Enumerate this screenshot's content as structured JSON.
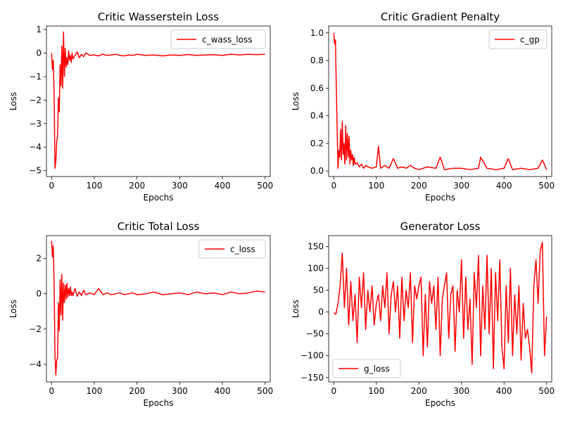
{
  "chart_data": [
    {
      "type": "line",
      "title": "Critic Wasserstein Loss",
      "xlabel": "Epochs",
      "ylabel": "Loss",
      "xlim": [
        -12,
        512
      ],
      "ylim": [
        -5.25,
        1.15
      ],
      "xticks": [
        0,
        100,
        200,
        300,
        400,
        500
      ],
      "yticks": [
        -5,
        -4,
        -3,
        -2,
        -1,
        0,
        1
      ],
      "legend_position": "upper-right",
      "grid": false,
      "series": [
        {
          "name": "c_wass_loss",
          "color": "#ff0000",
          "x": [
            0,
            2,
            4,
            6,
            8,
            10,
            12,
            14,
            16,
            18,
            20,
            22,
            24,
            26,
            28,
            30,
            32,
            34,
            36,
            38,
            40,
            42,
            44,
            46,
            48,
            50,
            55,
            60,
            65,
            70,
            75,
            80,
            90,
            100,
            110,
            120,
            130,
            140,
            150,
            160,
            170,
            180,
            190,
            200,
            220,
            240,
            260,
            280,
            300,
            320,
            340,
            360,
            380,
            400,
            420,
            440,
            460,
            480,
            500
          ],
          "y": [
            0.0,
            -0.7,
            -0.3,
            -1.8,
            -4.9,
            -4.6,
            -3.8,
            -3.5,
            -1.9,
            -2.5,
            -0.5,
            -1.4,
            0.3,
            -1.5,
            0.9,
            -1.0,
            0.2,
            -0.6,
            -0.2,
            -0.5,
            0.1,
            -0.3,
            -0.1,
            -0.4,
            0.0,
            -0.25,
            -0.1,
            0.05,
            -0.2,
            -0.05,
            -0.15,
            0.0,
            -0.1,
            -0.08,
            -0.12,
            -0.05,
            -0.1,
            -0.08,
            -0.05,
            -0.1,
            -0.12,
            -0.08,
            -0.1,
            -0.05,
            -0.1,
            -0.08,
            -0.12,
            -0.08,
            -0.1,
            -0.06,
            -0.1,
            -0.08,
            -0.07,
            -0.1,
            -0.05,
            -0.08,
            -0.05,
            -0.07,
            -0.05
          ]
        }
      ]
    },
    {
      "type": "line",
      "title": "Critic Gradient Penalty",
      "xlabel": "Epochs",
      "ylabel": "Loss",
      "xlim": [
        -12,
        512
      ],
      "ylim": [
        -0.04,
        1.05
      ],
      "xticks": [
        0,
        100,
        200,
        300,
        400,
        500
      ],
      "yticks": [
        0.0,
        0.2,
        0.4,
        0.6,
        0.8,
        1.0
      ],
      "legend_position": "upper-right",
      "grid": false,
      "series": [
        {
          "name": "c_gp",
          "color": "#ff0000",
          "x": [
            0,
            2,
            4,
            6,
            8,
            10,
            12,
            14,
            16,
            18,
            20,
            22,
            24,
            26,
            28,
            30,
            32,
            34,
            36,
            38,
            40,
            42,
            44,
            46,
            48,
            50,
            55,
            60,
            65,
            70,
            75,
            80,
            90,
            100,
            105,
            110,
            120,
            130,
            140,
            150,
            160,
            170,
            180,
            190,
            200,
            220,
            240,
            250,
            260,
            280,
            300,
            320,
            340,
            345,
            360,
            380,
            400,
            410,
            420,
            440,
            460,
            480,
            490,
            500
          ],
          "y": [
            1.0,
            0.92,
            0.95,
            0.6,
            0.3,
            0.02,
            0.15,
            0.1,
            0.3,
            0.08,
            0.36,
            0.12,
            0.2,
            0.05,
            0.33,
            0.08,
            0.27,
            0.1,
            0.25,
            0.05,
            0.15,
            0.08,
            0.12,
            0.04,
            0.1,
            0.05,
            0.06,
            0.03,
            0.05,
            0.02,
            0.04,
            0.03,
            0.02,
            0.03,
            0.18,
            0.02,
            0.04,
            0.02,
            0.09,
            0.02,
            0.03,
            0.02,
            0.04,
            0.02,
            0.01,
            0.03,
            0.02,
            0.1,
            0.01,
            0.02,
            0.02,
            0.01,
            0.02,
            0.1,
            0.02,
            0.01,
            0.02,
            0.09,
            0.01,
            0.02,
            0.01,
            0.02,
            0.08,
            0.01
          ]
        }
      ]
    },
    {
      "type": "line",
      "title": "Critic Total Loss",
      "xlabel": "Epochs",
      "ylabel": "Loss",
      "xlim": [
        -12,
        512
      ],
      "ylim": [
        -5.0,
        3.3
      ],
      "xticks": [
        0,
        100,
        200,
        300,
        400,
        500
      ],
      "yticks": [
        -4,
        -2,
        0,
        2
      ],
      "legend_position": "upper-right",
      "grid": false,
      "series": [
        {
          "name": "c_loss",
          "color": "#ff0000",
          "x": [
            0,
            2,
            4,
            6,
            8,
            10,
            12,
            14,
            16,
            18,
            20,
            22,
            24,
            26,
            28,
            30,
            32,
            34,
            36,
            38,
            40,
            42,
            44,
            46,
            48,
            50,
            55,
            60,
            65,
            70,
            75,
            80,
            90,
            100,
            110,
            120,
            130,
            140,
            150,
            160,
            170,
            180,
            190,
            200,
            220,
            240,
            260,
            280,
            300,
            320,
            340,
            360,
            380,
            400,
            420,
            440,
            460,
            480,
            500
          ],
          "y": [
            3.0,
            2.1,
            2.7,
            0.5,
            -3.5,
            -4.6,
            -3.8,
            -3.6,
            -0.5,
            -2.1,
            0.8,
            -1.2,
            1.1,
            -1.5,
            0.6,
            -0.5,
            0.5,
            -0.3,
            0.6,
            -0.2,
            0.3,
            -0.1,
            0.4,
            -0.1,
            0.1,
            -0.1,
            0.3,
            -0.15,
            0.1,
            -0.1,
            0.2,
            -0.05,
            0.05,
            -0.05,
            0.3,
            -0.05,
            0.05,
            -0.05,
            0.0,
            0.05,
            -0.05,
            0.0,
            0.05,
            -0.05,
            0.0,
            0.1,
            -0.05,
            0.0,
            0.05,
            -0.05,
            0.1,
            0.0,
            0.05,
            -0.05,
            0.1,
            0.0,
            0.05,
            0.15,
            0.1
          ]
        }
      ]
    },
    {
      "type": "line",
      "title": "Generator Loss",
      "xlabel": "Epochs",
      "ylabel": "Loss",
      "xlim": [
        -12,
        512
      ],
      "ylim": [
        -160,
        175
      ],
      "xticks": [
        0,
        100,
        200,
        300,
        400,
        500
      ],
      "yticks": [
        -150,
        -100,
        -50,
        0,
        50,
        100,
        150
      ],
      "legend_position": "lower-left",
      "grid": false,
      "series": [
        {
          "name": "g_loss",
          "color": "#ff0000",
          "x": [
            0,
            5,
            10,
            15,
            20,
            25,
            30,
            35,
            40,
            45,
            50,
            55,
            60,
            65,
            70,
            75,
            80,
            85,
            90,
            95,
            100,
            105,
            110,
            115,
            120,
            125,
            130,
            135,
            140,
            145,
            150,
            155,
            160,
            165,
            170,
            175,
            180,
            185,
            190,
            195,
            200,
            205,
            210,
            215,
            220,
            225,
            230,
            235,
            240,
            245,
            250,
            255,
            260,
            265,
            270,
            275,
            280,
            285,
            290,
            295,
            300,
            305,
            310,
            315,
            320,
            325,
            330,
            335,
            340,
            345,
            350,
            355,
            360,
            365,
            370,
            375,
            380,
            385,
            390,
            395,
            400,
            405,
            410,
            415,
            420,
            425,
            430,
            435,
            440,
            445,
            450,
            455,
            460,
            465,
            470,
            475,
            480,
            485,
            490,
            495,
            500
          ],
          "y": [
            -2,
            -5,
            20,
            60,
            135,
            10,
            100,
            -30,
            70,
            -20,
            40,
            -70,
            80,
            10,
            90,
            -40,
            50,
            0,
            60,
            -30,
            20,
            40,
            -20,
            60,
            10,
            90,
            -50,
            40,
            70,
            0,
            60,
            -60,
            80,
            -20,
            50,
            10,
            90,
            -70,
            60,
            30,
            60,
            80,
            -100,
            40,
            -80,
            70,
            20,
            60,
            -40,
            80,
            -100,
            30,
            60,
            90,
            -60,
            40,
            60,
            -90,
            50,
            0,
            120,
            -60,
            80,
            -40,
            30,
            -120,
            90,
            10,
            130,
            -100,
            60,
            -40,
            130,
            -50,
            100,
            -130,
            90,
            -20,
            120,
            -80,
            -130,
            60,
            -70,
            100,
            -100,
            40,
            -50,
            60,
            -110,
            20,
            -60,
            -40,
            -80,
            -140,
            60,
            120,
            20,
            140,
            160,
            -100,
            -10
          ]
        }
      ]
    }
  ]
}
